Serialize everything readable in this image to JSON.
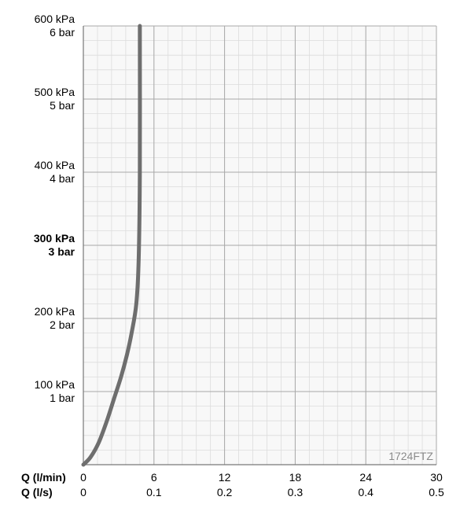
{
  "chart_data": {
    "type": "line",
    "code_label": "1724FTZ",
    "x_axis_titles": [
      "Q (l/min)",
      "Q (l/s)"
    ],
    "x_ticks_lmin": [
      "0",
      "6",
      "12",
      "18",
      "24",
      "30"
    ],
    "x_ticks_ls": [
      "0",
      "0.1",
      "0.2",
      "0.3",
      "0.4",
      "0.5"
    ],
    "xlim": [
      0,
      30
    ],
    "y_ticks": [
      {
        "value": 100,
        "kpa": "100 kPa",
        "bar": "1 bar",
        "bold": false
      },
      {
        "value": 200,
        "kpa": "200 kPa",
        "bar": "2 bar",
        "bold": false
      },
      {
        "value": 300,
        "kpa": "300 kPa",
        "bar": "3 bar",
        "bold": true
      },
      {
        "value": 400,
        "kpa": "400 kPa",
        "bar": "4 bar",
        "bold": false
      },
      {
        "value": 500,
        "kpa": "500 kPa",
        "bar": "5 bar",
        "bold": false
      },
      {
        "value": 600,
        "kpa": "600 kPa",
        "bar": "6 bar",
        "bold": false
      }
    ],
    "ylim": [
      0,
      600
    ],
    "grid": true,
    "series": [
      {
        "color": "#6e6e6e",
        "x": [
          0,
          0.6,
          1.3,
          2.0,
          2.6,
          3.2,
          3.7,
          4.1,
          4.5,
          4.7,
          4.8,
          4.8
        ],
        "y": [
          0,
          10,
          30,
          60,
          90,
          120,
          150,
          180,
          220,
          280,
          400,
          600
        ]
      }
    ]
  }
}
